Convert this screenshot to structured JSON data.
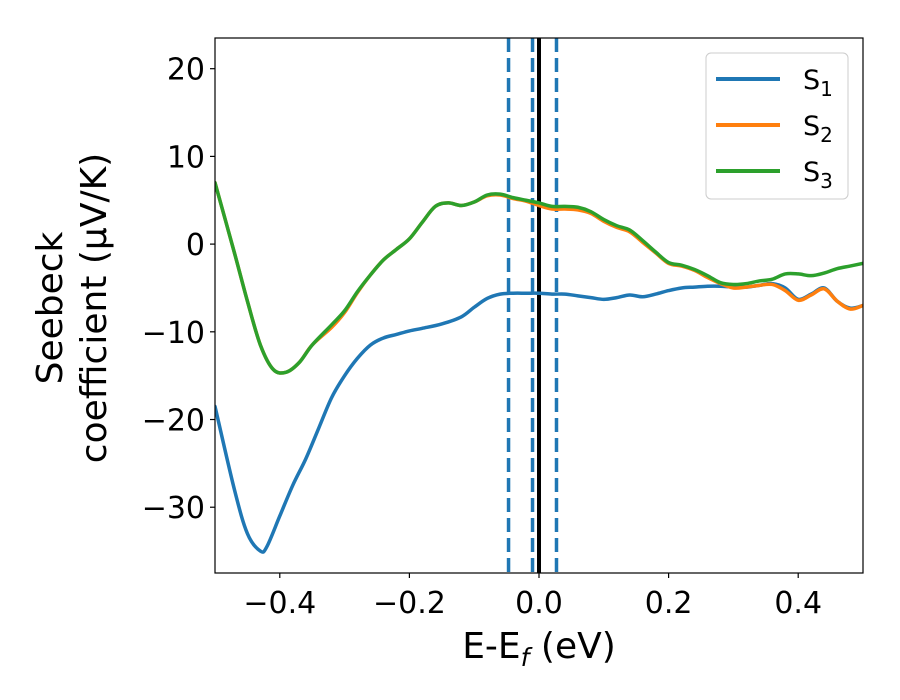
{
  "chart_data": {
    "type": "line",
    "xlabel": "E-E",
    "xlabel_sub": "f",
    "xlabel_unit": " (eV)",
    "ylabel": [
      "Seebeck",
      "coefficient  (μV/K)"
    ],
    "xlim": [
      -0.5,
      0.5
    ],
    "ylim": [
      -37.5,
      23.5
    ],
    "x_ticks": [
      -0.4,
      -0.2,
      0.0,
      0.2,
      0.4
    ],
    "x_tick_labels": [
      "−0.4",
      "−0.2",
      "0.0",
      "0.2",
      "0.4"
    ],
    "y_ticks": [
      20,
      10,
      0,
      -10,
      -20,
      -30
    ],
    "y_tick_labels": [
      "20",
      "10",
      "0",
      "−10",
      "−20",
      "−30"
    ],
    "grid": false,
    "legend_position": "top-right",
    "vlines": [
      {
        "x": -0.047,
        "style": "dashed",
        "color": "#1f77b4"
      },
      {
        "x": -0.01,
        "style": "dashed",
        "color": "#1f77b4"
      },
      {
        "x": 0.0,
        "style": "solid",
        "color": "#000000"
      },
      {
        "x": 0.027,
        "style": "dashed",
        "color": "#1f77b4"
      }
    ],
    "series": [
      {
        "name": "S",
        "sub": "1",
        "color": "#1f77b4",
        "x": [
          -0.5,
          -0.47,
          -0.45,
          -0.43,
          -0.42,
          -0.4,
          -0.38,
          -0.36,
          -0.34,
          -0.32,
          -0.3,
          -0.28,
          -0.26,
          -0.24,
          -0.22,
          -0.2,
          -0.18,
          -0.15,
          -0.12,
          -0.1,
          -0.08,
          -0.06,
          -0.04,
          -0.02,
          0.0,
          0.02,
          0.04,
          0.06,
          0.08,
          0.1,
          0.12,
          0.14,
          0.16,
          0.18,
          0.2,
          0.22,
          0.24,
          0.26,
          0.28,
          0.3,
          0.32,
          0.34,
          0.36,
          0.38,
          0.4,
          0.42,
          0.44,
          0.46,
          0.48,
          0.5
        ],
        "y": [
          -18.5,
          -28,
          -33,
          -35,
          -34.5,
          -31,
          -27.5,
          -24.5,
          -21,
          -17.5,
          -15,
          -13,
          -11.5,
          -10.7,
          -10.3,
          -9.9,
          -9.6,
          -9.1,
          -8.3,
          -7.2,
          -6.2,
          -5.7,
          -5.6,
          -5.6,
          -5.6,
          -5.7,
          -5.7,
          -5.9,
          -6.1,
          -6.3,
          -6.1,
          -5.8,
          -6.0,
          -5.7,
          -5.3,
          -5.0,
          -4.9,
          -4.8,
          -4.8,
          -4.9,
          -4.9,
          -4.7,
          -4.5,
          -5.0,
          -6.3,
          -5.7,
          -5.0,
          -6.5,
          -7.3,
          -7.0
        ]
      },
      {
        "name": "S",
        "sub": "2",
        "color": "#ff7f0e",
        "x": [
          -0.5,
          -0.47,
          -0.45,
          -0.43,
          -0.41,
          -0.39,
          -0.37,
          -0.35,
          -0.32,
          -0.3,
          -0.28,
          -0.26,
          -0.24,
          -0.22,
          -0.2,
          -0.18,
          -0.16,
          -0.14,
          -0.12,
          -0.1,
          -0.08,
          -0.06,
          -0.04,
          -0.02,
          0.0,
          0.02,
          0.04,
          0.06,
          0.08,
          0.1,
          0.12,
          0.14,
          0.16,
          0.18,
          0.2,
          0.22,
          0.24,
          0.26,
          0.28,
          0.3,
          0.32,
          0.34,
          0.36,
          0.38,
          0.4,
          0.42,
          0.44,
          0.46,
          0.48,
          0.5
        ],
        "y": [
          7,
          -1,
          -6.5,
          -11.5,
          -14.3,
          -14.6,
          -13.5,
          -11.5,
          -9.5,
          -7.8,
          -5.5,
          -3.5,
          -1.8,
          -0.6,
          0.6,
          2.5,
          4.3,
          4.7,
          4.4,
          4.8,
          5.5,
          5.6,
          5.2,
          4.9,
          4.4,
          4.0,
          4.0,
          3.9,
          3.5,
          2.6,
          1.9,
          1.4,
          0.2,
          -1.0,
          -2.2,
          -2.5,
          -3.0,
          -3.8,
          -4.5,
          -5.0,
          -4.9,
          -4.7,
          -4.6,
          -5.3,
          -6.4,
          -5.8,
          -5.1,
          -6.5,
          -7.4,
          -7.0
        ]
      },
      {
        "name": "S",
        "sub": "3",
        "color": "#2ca02c",
        "x": [
          -0.5,
          -0.47,
          -0.45,
          -0.43,
          -0.41,
          -0.39,
          -0.37,
          -0.35,
          -0.32,
          -0.3,
          -0.28,
          -0.26,
          -0.24,
          -0.22,
          -0.2,
          -0.18,
          -0.16,
          -0.14,
          -0.12,
          -0.1,
          -0.08,
          -0.06,
          -0.04,
          -0.02,
          0.0,
          0.02,
          0.04,
          0.06,
          0.08,
          0.1,
          0.12,
          0.14,
          0.16,
          0.18,
          0.2,
          0.22,
          0.24,
          0.26,
          0.28,
          0.3,
          0.32,
          0.34,
          0.36,
          0.38,
          0.4,
          0.42,
          0.44,
          0.46,
          0.48,
          0.5
        ],
        "y": [
          7,
          -1,
          -6.5,
          -11.5,
          -14.3,
          -14.6,
          -13.5,
          -11.5,
          -9.2,
          -7.6,
          -5.4,
          -3.5,
          -1.8,
          -0.6,
          0.6,
          2.5,
          4.3,
          4.7,
          4.4,
          4.8,
          5.6,
          5.7,
          5.3,
          5.0,
          4.7,
          4.3,
          4.3,
          4.2,
          3.7,
          2.8,
          2.1,
          1.6,
          0.4,
          -0.9,
          -2.1,
          -2.4,
          -2.9,
          -3.6,
          -4.4,
          -4.6,
          -4.5,
          -4.2,
          -4.0,
          -3.4,
          -3.4,
          -3.6,
          -3.3,
          -2.8,
          -2.5,
          -2.2
        ]
      }
    ]
  }
}
